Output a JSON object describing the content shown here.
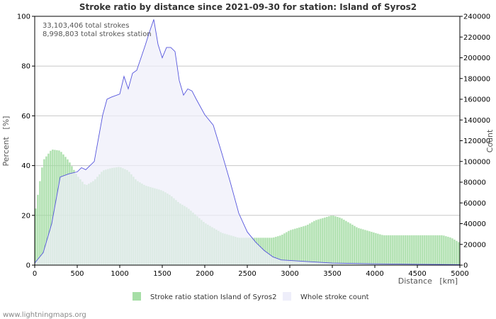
{
  "chart_data": {
    "type": "bar+area",
    "title": "Stroke ratio by distance since 2021-09-30 for station: Island of Syros2",
    "xlabel": "Distance   [km]",
    "ylabel_left": "Percent   [%]",
    "ylabel_right": "Count",
    "xlim": [
      0,
      5000
    ],
    "ylim_left": [
      0,
      100
    ],
    "ylim_right": [
      0,
      240000
    ],
    "x_ticks": [
      0,
      500,
      1000,
      1500,
      2000,
      2500,
      3000,
      3500,
      4000,
      4500,
      5000
    ],
    "y_left_ticks": [
      0,
      20,
      40,
      60,
      80,
      100
    ],
    "y_right_ticks": [
      0,
      20000,
      40000,
      60000,
      80000,
      100000,
      120000,
      140000,
      160000,
      180000,
      200000,
      220000,
      240000
    ],
    "grid": true,
    "legend_position": "bottom",
    "annotations": [
      "33,103,406 total strokes",
      "8,998,803 total strokes station"
    ],
    "series": [
      {
        "name": "Stroke ratio station Island of Syros2",
        "kind": "bar",
        "axis": "left",
        "color": "#9fdb9f",
        "x": [
          0,
          100,
          200,
          300,
          400,
          500,
          600,
          700,
          800,
          900,
          1000,
          1100,
          1200,
          1300,
          1400,
          1500,
          1600,
          1700,
          1800,
          1900,
          2000,
          2100,
          2200,
          2300,
          2400,
          2500,
          2600,
          2700,
          2800,
          2900,
          3000,
          3100,
          3200,
          3300,
          3400,
          3500,
          3600,
          3700,
          3800,
          3900,
          4000,
          4100,
          4200,
          4300,
          4400,
          4500,
          4600,
          4700,
          4800,
          4900,
          5000
        ],
        "values": [
          20,
          42,
          46.5,
          46,
          42,
          36,
          32,
          34,
          38,
          39,
          39.5,
          38,
          34,
          32,
          31,
          30,
          28,
          25,
          23,
          20,
          17,
          15,
          13,
          12,
          11,
          11,
          11,
          11,
          11,
          12,
          14,
          15,
          16,
          18,
          19,
          20,
          19,
          17,
          15,
          14,
          13,
          12,
          12,
          12,
          12,
          12,
          12,
          12,
          12,
          11,
          9
        ]
      },
      {
        "name": "Whole stroke count",
        "kind": "area",
        "axis": "right",
        "color": "#5555dd",
        "fill": "#eeeefa",
        "x": [
          0,
          100,
          200,
          300,
          400,
          500,
          550,
          600,
          700,
          800,
          850,
          900,
          1000,
          1050,
          1100,
          1150,
          1200,
          1250,
          1300,
          1350,
          1400,
          1450,
          1500,
          1550,
          1600,
          1650,
          1700,
          1750,
          1800,
          1850,
          1900,
          2000,
          2100,
          2200,
          2300,
          2400,
          2500,
          2600,
          2700,
          2800,
          2900,
          3000,
          3200,
          3500,
          4000,
          4500,
          5000
        ],
        "values": [
          2000,
          12000,
          40000,
          85000,
          88000,
          90000,
          94000,
          92000,
          100000,
          145000,
          160000,
          162000,
          165000,
          182000,
          170000,
          185000,
          188000,
          200000,
          212000,
          225000,
          237000,
          213000,
          200000,
          210000,
          210000,
          206000,
          178000,
          164000,
          170000,
          168000,
          160000,
          145000,
          135000,
          108000,
          80000,
          50000,
          32000,
          22000,
          14000,
          8000,
          5000,
          4500,
          3500,
          2000,
          1200,
          800,
          500
        ]
      }
    ]
  },
  "credit": "www.lightningmaps.org"
}
